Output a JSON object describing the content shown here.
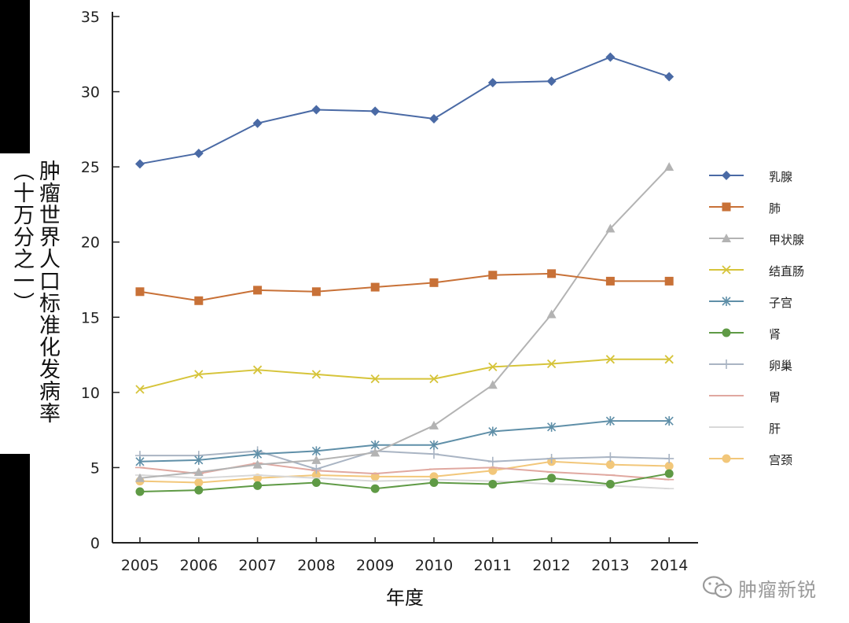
{
  "chart_data": {
    "type": "line",
    "title": "",
    "xlabel": "年度",
    "ylabel": "肿瘤世界人口标准化发病率",
    "ylabel_unit": "（十万分之一）",
    "x": [
      2005,
      2006,
      2007,
      2008,
      2009,
      2010,
      2011,
      2012,
      2013,
      2014
    ],
    "ylim": [
      0,
      35
    ],
    "yticks": [
      0,
      5,
      10,
      15,
      20,
      25,
      30,
      35
    ],
    "grid": false,
    "legend_position": "right",
    "series": [
      {
        "name": "乳腺",
        "color": "#4a6aa5",
        "marker": "diamond",
        "values": [
          25.2,
          25.9,
          27.9,
          28.8,
          28.7,
          28.2,
          30.6,
          30.7,
          32.3,
          31.0
        ]
      },
      {
        "name": "肺",
        "color": "#c87137",
        "marker": "square",
        "values": [
          16.7,
          16.1,
          16.8,
          16.7,
          17.0,
          17.3,
          17.8,
          17.9,
          17.4,
          17.4
        ]
      },
      {
        "name": "甲状腺",
        "color": "#b3b3b3",
        "marker": "triangle",
        "values": [
          4.3,
          4.7,
          5.2,
          5.5,
          6.0,
          7.8,
          10.5,
          15.2,
          20.9,
          25.0
        ]
      },
      {
        "name": "结直肠",
        "color": "#d6c43a",
        "marker": "x",
        "values": [
          10.2,
          11.2,
          11.5,
          11.2,
          10.9,
          10.9,
          11.7,
          11.9,
          12.2,
          12.2
        ]
      },
      {
        "name": "子宫",
        "color": "#5f8fa8",
        "marker": "asterisk",
        "values": [
          5.4,
          5.5,
          5.9,
          6.1,
          6.5,
          6.5,
          7.4,
          7.7,
          8.1,
          8.1
        ]
      },
      {
        "name": "肾",
        "color": "#5f9a45",
        "marker": "circle",
        "values": [
          3.4,
          3.5,
          3.8,
          4.0,
          3.6,
          4.0,
          3.9,
          4.3,
          3.9,
          4.6
        ]
      },
      {
        "name": "卵巢",
        "color": "#a9b4c3",
        "marker": "plus",
        "values": [
          5.8,
          5.8,
          6.1,
          4.9,
          6.1,
          5.9,
          5.4,
          5.6,
          5.7,
          5.6
        ]
      },
      {
        "name": "胃",
        "color": "#e0a8a0",
        "marker": "dash",
        "values": [
          5.0,
          4.6,
          5.3,
          4.8,
          4.6,
          4.9,
          5.0,
          4.7,
          4.5,
          4.2
        ]
      },
      {
        "name": "肝",
        "color": "#d8d8d8",
        "marker": "dash",
        "values": [
          4.5,
          4.3,
          4.5,
          4.3,
          4.1,
          4.2,
          4.1,
          3.9,
          3.8,
          3.6
        ]
      },
      {
        "name": "宫颈",
        "color": "#f2c77a",
        "marker": "circle",
        "values": [
          4.1,
          4.0,
          4.3,
          4.5,
          4.4,
          4.4,
          4.8,
          5.4,
          5.2,
          5.1
        ]
      }
    ]
  },
  "watermark": {
    "text": "肿瘤新锐",
    "icon": "wechat-icon"
  }
}
